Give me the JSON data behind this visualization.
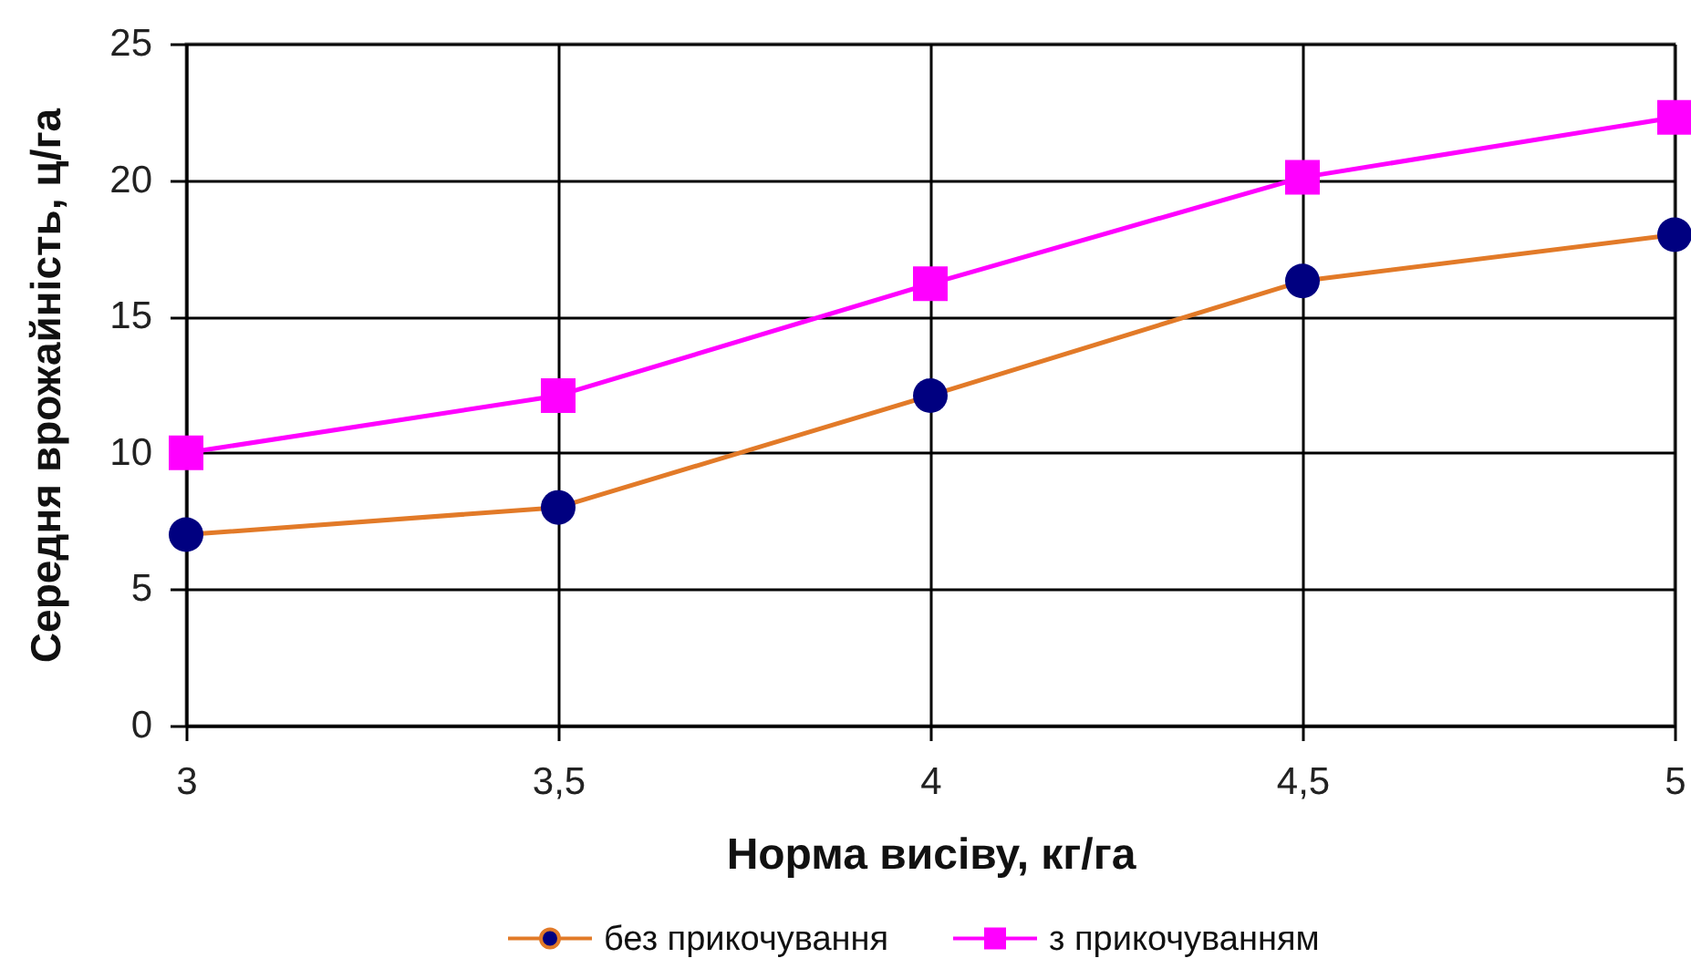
{
  "chart_data": {
    "type": "line",
    "xlabel": "Норма висіву, кг/га",
    "ylabel": "Середня врожайність, ц/га",
    "x": [
      3,
      3.5,
      4,
      4.5,
      5
    ],
    "xlim": [
      3,
      5
    ],
    "xticks": [
      3,
      {
        "value": 3.5,
        "label": "3,5"
      },
      4,
      {
        "value": 4.5,
        "label": "4,5"
      },
      5
    ],
    "ylim": [
      0,
      25
    ],
    "yticks": [
      0,
      5,
      10,
      15,
      20,
      25
    ],
    "grid": true,
    "legend": "bottom",
    "line_style": "solid",
    "series": [
      {
        "name": "без прикочування",
        "color": "#e27a28",
        "marker": "circle",
        "colors": [
          "#000080",
          "#000080",
          "#000080",
          "#000080",
          "#000080"
        ],
        "values": [
          7,
          8,
          12.1,
          16.3,
          18
        ]
      },
      {
        "name": "з прикочуванням",
        "color": "#ff00ff",
        "marker": "square",
        "values": [
          10,
          12.1,
          16.2,
          20.1,
          22.3
        ]
      }
    ]
  }
}
